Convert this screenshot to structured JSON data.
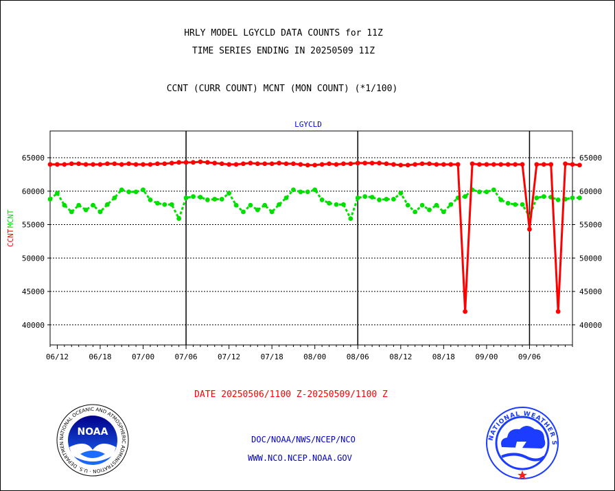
{
  "header": {
    "line1": "HRLY MODEL LGYCLD DATA COUNTS for 11Z",
    "line2": "TIME SERIES ENDING IN 20250509 11Z",
    "line3": "CCNT (CURR COUNT) MCNT (MON COUNT) (*1/100)"
  },
  "footer": {
    "date_range": "DATE 20250506/1100 Z-20250509/1100 Z",
    "org": "DOC/NOAA/NWS/NCEP/NCO",
    "url": "WWW.NCO.NCEP.NOAA.GOV"
  },
  "logos": {
    "left": {
      "name": "noaa-logo",
      "text": "NOAA",
      "ring": "NATIONAL OCEANIC AND ATMOSPHERIC ADMINISTRATION · U.S. DEPARTMENT OF COMMERCE"
    },
    "right": {
      "name": "nws-logo",
      "ring": "NATIONAL WEATHER SERVICE"
    }
  },
  "colors": {
    "ccnt": "#ff0000",
    "mcnt": "#00e000",
    "plot_title": "#0000ff",
    "links": "#0000cc",
    "date_text": "#ff0000"
  },
  "chart_data": {
    "type": "line",
    "title": "LGYCLD",
    "ylabel_left": [
      "CCNT",
      "MCNT"
    ],
    "ylim": [
      37000,
      69000
    ],
    "yticks": [
      40000,
      45000,
      50000,
      55000,
      60000,
      65000
    ],
    "ytick_labels": [
      "40000",
      "45000",
      "50000",
      "55000",
      "60000",
      "65000"
    ],
    "xlim": [
      0,
      73
    ],
    "xtick_positions": [
      1,
      7,
      13,
      19,
      25,
      31,
      37,
      43,
      49,
      55,
      61,
      67
    ],
    "xtick_labels": [
      "06/12",
      "06/18",
      "07/00",
      "07/06",
      "07/12",
      "07/18",
      "08/00",
      "08/06",
      "08/12",
      "08/18",
      "09/00",
      "09/06"
    ],
    "vlines": [
      19,
      43,
      67
    ],
    "series": [
      {
        "name": "CCNT",
        "values": [
          64000,
          64000,
          64000,
          64100,
          64100,
          64000,
          64000,
          64000,
          64100,
          64100,
          64000,
          64100,
          64000,
          64000,
          64000,
          64100,
          64100,
          64200,
          64300,
          64300,
          64300,
          64400,
          64300,
          64200,
          64100,
          64000,
          64000,
          64100,
          64200,
          64100,
          64100,
          64100,
          64200,
          64100,
          64100,
          64000,
          63900,
          63900,
          64000,
          64100,
          64000,
          64100,
          64100,
          64200,
          64200,
          64200,
          64200,
          64100,
          64000,
          63900,
          63900,
          64000,
          64100,
          64100,
          64000,
          64000,
          64000,
          64000,
          42000,
          64100,
          64000,
          64000,
          64000,
          64000,
          64000,
          64000,
          64000,
          54300,
          64000,
          64000,
          64000,
          42000,
          64100,
          64000,
          63900
        ]
      },
      {
        "name": "MCNT",
        "values": [
          58800,
          59700,
          57900,
          56900,
          57900,
          57200,
          57900,
          56900,
          58000,
          59000,
          60200,
          59900,
          59900,
          60200,
          58700,
          58200,
          58000,
          58000,
          55900,
          59000,
          59200,
          59100,
          58700,
          58800,
          58800,
          59700,
          57900,
          56900,
          57900,
          57200,
          57900,
          56900,
          58000,
          59000,
          60200,
          59900,
          59900,
          60200,
          58700,
          58200,
          58000,
          58000,
          55900,
          59000,
          59200,
          59100,
          58700,
          58800,
          58800,
          59700,
          57900,
          56900,
          57900,
          57200,
          57900,
          56900,
          58000,
          59000,
          59200,
          60200,
          59900,
          59900,
          60200,
          58700,
          58200,
          58000,
          58000,
          56200,
          59000,
          59200,
          59100,
          58700,
          58800,
          59000,
          59000
        ]
      }
    ],
    "grid": "horizontal",
    "legend": "none"
  }
}
